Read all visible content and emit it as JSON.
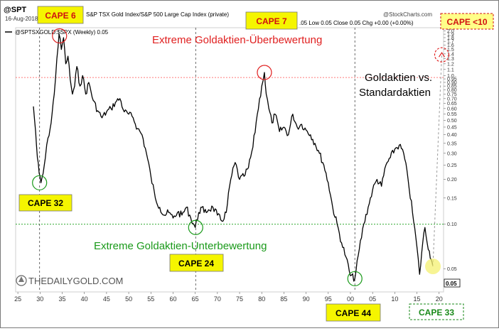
{
  "header": {
    "symbol": "@SPT",
    "index_title": "S&P TSX Gold Index/S&P 500 Large Cap Index (private)",
    "ohlc": ".05 Low 0.05 Close 0.05 Chg +0.00 (+0.00%)",
    "source": "@StockCharts.com",
    "date": "16-Aug-2018",
    "legend": "@SPTSXGOLD:$SPX (Weekly) 0.05"
  },
  "logo": {
    "text": "THEDAILYGOLD.COM"
  },
  "colors": {
    "line": "#000000",
    "upper_ref": "#ff7b7b",
    "lower_ref": "#33aa33",
    "red_text": "#e02020",
    "green_text": "#1a9a1a",
    "badge_fill": "#f5f500",
    "badge_red_text": "#d01010",
    "badge_green_text": "#1a8a1a"
  },
  "chart_data": {
    "type": "line",
    "title": "",
    "xlabel": "",
    "ylabel": "",
    "x_ticks": [
      "25",
      "30",
      "35",
      "40",
      "45",
      "50",
      "55",
      "60",
      "65",
      "70",
      "75",
      "80",
      "85",
      "90",
      "95",
      "00",
      "05",
      "10",
      "15",
      "20"
    ],
    "y_ticks": [
      "0.05",
      "0.10",
      "0.15",
      "0.20",
      "0.25",
      "0.30",
      "0.35",
      "0.40",
      "0.45",
      "0.50",
      "0.55",
      "0.60",
      "0.65",
      "0.70",
      "0.75",
      "0.80",
      "0.85",
      "0.90",
      "0.95",
      "1.0",
      "1.1",
      "1.2",
      "1.3",
      "1.4",
      "1.5",
      "1.6",
      "1.7",
      "1.8",
      "1.9",
      "2.0"
    ],
    "last_value_label": "0.05",
    "ylim": [
      0.035,
      2.1
    ],
    "y_scale": "log",
    "reference_lines": [
      {
        "value": 0.97,
        "style": "dotted",
        "color": "#ff7b7b"
      },
      {
        "value": 0.1,
        "style": "dotted",
        "color": "#33aa33"
      }
    ],
    "series": [
      {
        "values": [
          [
            1928.5,
            0.62
          ],
          [
            1929.0,
            0.42
          ],
          [
            1929.4,
            0.28
          ],
          [
            1929.8,
            0.22
          ],
          [
            1930.2,
            0.19
          ],
          [
            1930.7,
            0.22
          ],
          [
            1931.2,
            0.28
          ],
          [
            1931.8,
            0.38
          ],
          [
            1932.5,
            0.48
          ],
          [
            1933.2,
            0.75
          ],
          [
            1933.8,
            1.3
          ],
          [
            1934.3,
            1.9
          ],
          [
            1934.8,
            1.5
          ],
          [
            1935.3,
            1.8
          ],
          [
            1935.8,
            1.2
          ],
          [
            1936.3,
            1.35
          ],
          [
            1936.8,
            0.95
          ],
          [
            1937.3,
            0.75
          ],
          [
            1937.8,
            0.85
          ],
          [
            1938.3,
            1.15
          ],
          [
            1939.0,
            0.85
          ],
          [
            1939.6,
            1.0
          ],
          [
            1940.3,
            0.75
          ],
          [
            1941.0,
            0.9
          ],
          [
            1942.0,
            0.68
          ],
          [
            1943.0,
            0.58
          ],
          [
            1944.0,
            0.52
          ],
          [
            1945.0,
            0.57
          ],
          [
            1946.0,
            0.6
          ],
          [
            1947.0,
            0.66
          ],
          [
            1948.0,
            0.7
          ],
          [
            1949.0,
            0.57
          ],
          [
            1950.0,
            0.55
          ],
          [
            1951.0,
            0.52
          ],
          [
            1952.0,
            0.44
          ],
          [
            1953.0,
            0.4
          ],
          [
            1954.0,
            0.3
          ],
          [
            1955.0,
            0.21
          ],
          [
            1956.0,
            0.15
          ],
          [
            1957.0,
            0.13
          ],
          [
            1958.0,
            0.115
          ],
          [
            1959.0,
            0.12
          ],
          [
            1960.0,
            0.11
          ],
          [
            1961.0,
            0.12
          ],
          [
            1962.0,
            0.115
          ],
          [
            1963.0,
            0.13
          ],
          [
            1964.0,
            0.11
          ],
          [
            1965.0,
            0.095
          ],
          [
            1965.8,
            0.12
          ],
          [
            1966.5,
            0.13
          ],
          [
            1967.0,
            0.12
          ],
          [
            1968.0,
            0.125
          ],
          [
            1969.0,
            0.13
          ],
          [
            1970.0,
            0.115
          ],
          [
            1971.0,
            0.105
          ],
          [
            1972.0,
            0.12
          ],
          [
            1973.0,
            0.2
          ],
          [
            1974.0,
            0.26
          ],
          [
            1975.0,
            0.2
          ],
          [
            1976.0,
            0.21
          ],
          [
            1977.0,
            0.24
          ],
          [
            1978.0,
            0.33
          ],
          [
            1979.0,
            0.55
          ],
          [
            1980.0,
            0.85
          ],
          [
            1980.6,
            1.05
          ],
          [
            1981.0,
            0.75
          ],
          [
            1981.6,
            0.6
          ],
          [
            1982.3,
            0.48
          ],
          [
            1983.0,
            0.55
          ],
          [
            1984.0,
            0.42
          ],
          [
            1985.0,
            0.45
          ],
          [
            1986.0,
            0.4
          ],
          [
            1987.0,
            0.55
          ],
          [
            1988.0,
            0.45
          ],
          [
            1989.0,
            0.47
          ],
          [
            1990.0,
            0.43
          ],
          [
            1991.0,
            0.4
          ],
          [
            1992.0,
            0.35
          ],
          [
            1993.0,
            0.3
          ],
          [
            1994.0,
            0.25
          ],
          [
            1995.0,
            0.19
          ],
          [
            1996.0,
            0.13
          ],
          [
            1997.0,
            0.1
          ],
          [
            1998.0,
            0.075
          ],
          [
            1999.0,
            0.06
          ],
          [
            2000.0,
            0.045
          ],
          [
            2001.0,
            0.043
          ],
          [
            2002.0,
            0.068
          ],
          [
            2003.0,
            0.1
          ],
          [
            2004.0,
            0.13
          ],
          [
            2005.0,
            0.17
          ],
          [
            2006.0,
            0.2
          ],
          [
            2007.0,
            0.18
          ],
          [
            2008.0,
            0.25
          ],
          [
            2009.0,
            0.28
          ],
          [
            2010.0,
            0.32
          ],
          [
            2011.0,
            0.34
          ],
          [
            2012.0,
            0.3
          ],
          [
            2013.0,
            0.2
          ],
          [
            2014.0,
            0.12
          ],
          [
            2015.0,
            0.07
          ],
          [
            2015.6,
            0.046
          ],
          [
            2016.3,
            0.075
          ],
          [
            2016.8,
            0.095
          ],
          [
            2017.3,
            0.075
          ],
          [
            2017.8,
            0.066
          ],
          [
            2018.2,
            0.058
          ],
          [
            2018.6,
            0.052
          ]
        ]
      }
    ],
    "projection": {
      "from": [
        2018.6,
        0.052
      ],
      "to": [
        2020.6,
        1.38
      ],
      "style": "dashed",
      "color": "#999999"
    },
    "annotations": {
      "overvalued": "Extreme Goldaktien-Überbewertung",
      "undervalued": "Extreme Goldaktien-Unterbewertung",
      "gold_vs_standard_1": "Goldaktien vs.",
      "gold_vs_standard_2": "Standardaktien"
    },
    "cape_badges": [
      {
        "label": "CAPE 6",
        "color": "red"
      },
      {
        "label": "CAPE 7",
        "color": "red"
      },
      {
        "label": "CAPE <10",
        "color": "red",
        "dashed": true
      },
      {
        "label": "CAPE 32",
        "color": "black"
      },
      {
        "label": "CAPE 24",
        "color": "black"
      },
      {
        "label": "CAPE 44",
        "color": "black"
      },
      {
        "label": "CAPE 33",
        "color": "green",
        "dashed": true
      }
    ]
  }
}
